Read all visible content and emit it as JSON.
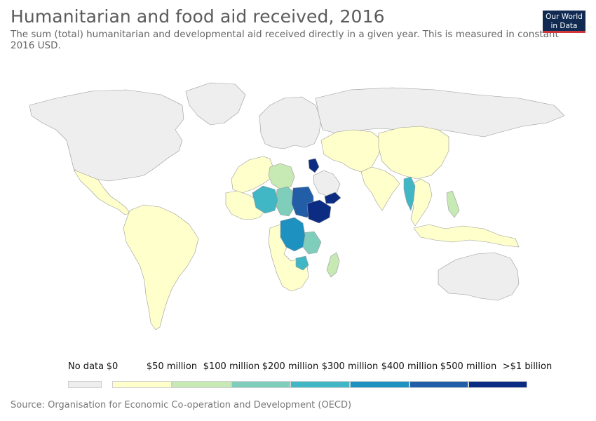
{
  "header": {
    "title": "Humanitarian and food aid received, 2016",
    "subtitle": "The sum (total) humanitarian and developmental aid received directly in a given year. This is measured in constant 2016 USD."
  },
  "logo": {
    "line1": "Our World",
    "line2": "in Data"
  },
  "map": {
    "no_data_color": "#eeeeee",
    "border_color": "#999999",
    "scale_colors": [
      "#ffffcc",
      "#c7e9b4",
      "#7fcdbb",
      "#41b6c4",
      "#1d91c0",
      "#225ea8",
      "#0c2c84"
    ],
    "regions": [
      {
        "name": "North America",
        "bucket": "nodata"
      },
      {
        "name": "Greenland",
        "bucket": "nodata"
      },
      {
        "name": "Europe",
        "bucket": "nodata"
      },
      {
        "name": "Russia",
        "bucket": "nodata"
      },
      {
        "name": "Australia",
        "bucket": "nodata"
      },
      {
        "name": "Saudi Arabia",
        "bucket": "nodata"
      },
      {
        "name": "Mexico and Central America",
        "bucket": 0
      },
      {
        "name": "South America",
        "bucket": 0
      },
      {
        "name": "North Africa",
        "bucket": 0
      },
      {
        "name": "West Africa",
        "bucket": 0
      },
      {
        "name": "Southern Africa",
        "bucket": 0
      },
      {
        "name": "Central and South Asia",
        "bucket": 0
      },
      {
        "name": "China and Mongolia",
        "bucket": 0
      },
      {
        "name": "India",
        "bucket": 0
      },
      {
        "name": "Southeast Asia",
        "bucket": 0
      },
      {
        "name": "Indonesia",
        "bucket": 0
      },
      {
        "name": "Libya",
        "bucket": 1
      },
      {
        "name": "Madagascar",
        "bucket": 1
      },
      {
        "name": "Philippines",
        "bucket": 1
      },
      {
        "name": "Chad",
        "bucket": 2
      },
      {
        "name": "Tanzania",
        "bucket": 2
      },
      {
        "name": "Mali and Niger",
        "bucket": 3
      },
      {
        "name": "Myanmar",
        "bucket": 3
      },
      {
        "name": "Zimbabwe",
        "bucket": 3
      },
      {
        "name": "DR Congo",
        "bucket": 4
      },
      {
        "name": "Sudan",
        "bucket": 5
      },
      {
        "name": "Ethiopia",
        "bucket": 6
      },
      {
        "name": "Yemen",
        "bucket": 6
      },
      {
        "name": "Syria",
        "bucket": 6
      }
    ]
  },
  "legend": {
    "no_data_label": "No data",
    "labels": [
      "$0",
      "$50 million",
      "$100 million",
      "$200 million",
      "$300 million",
      "$400 million",
      "$500 million",
      ">$1 billion"
    ]
  },
  "footer": {
    "source": "Source: Organisation for Economic Co-operation and Development (OECD)"
  }
}
